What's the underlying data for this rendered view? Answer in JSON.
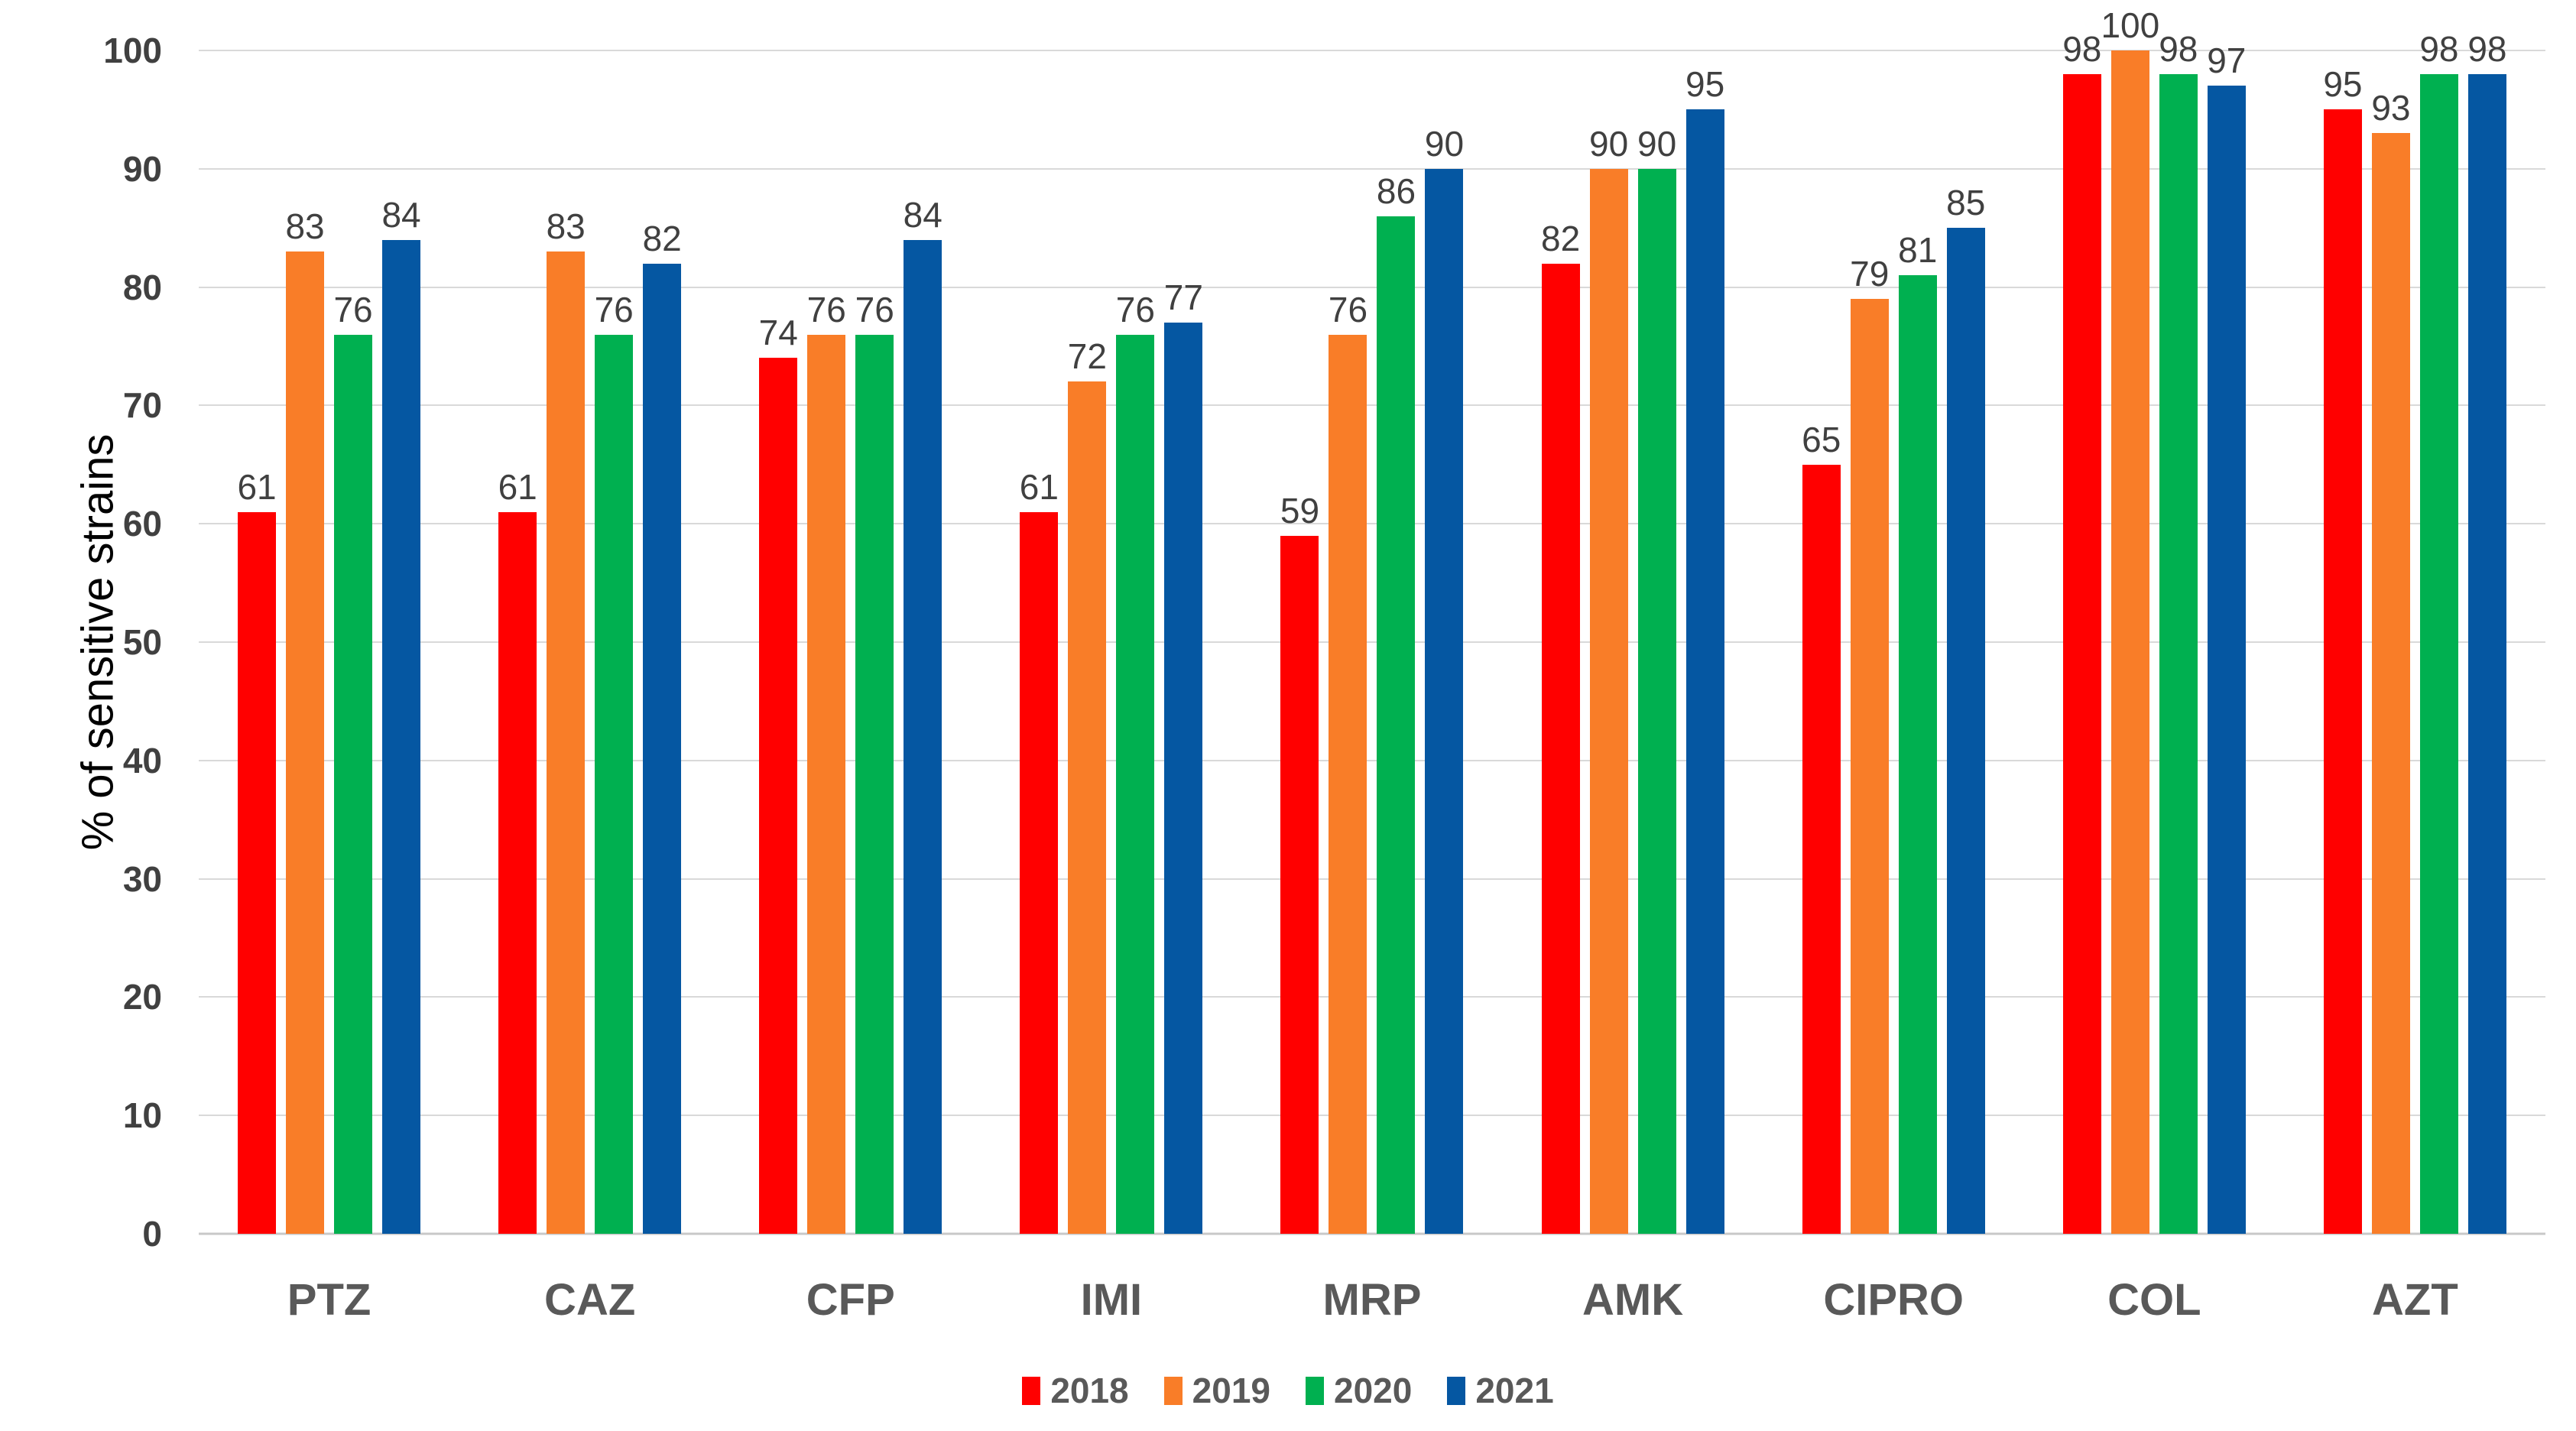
{
  "chart_data": {
    "type": "bar",
    "title": "",
    "xlabel": "",
    "ylabel": "% of sensitive strains",
    "ylim": [
      0,
      100
    ],
    "ytick_step": 10,
    "yticks": [
      "0",
      "10",
      "20",
      "30",
      "40",
      "50",
      "60",
      "70",
      "80",
      "90",
      "100"
    ],
    "grid": true,
    "legend_position": "bottom",
    "categories": [
      "PTZ",
      "CAZ",
      "CFP",
      "IMI",
      "MRP",
      "AMK",
      "CIPRO",
      "COL",
      "AZT"
    ],
    "series": [
      {
        "name": "2018",
        "color": "#FF0000",
        "values": [
          61,
          61,
          74,
          61,
          59,
          82,
          65,
          98,
          95
        ]
      },
      {
        "name": "2019",
        "color": "#F97D28",
        "values": [
          83,
          83,
          76,
          72,
          76,
          90,
          79,
          100,
          93
        ]
      },
      {
        "name": "2020",
        "color": "#00B050",
        "values": [
          76,
          76,
          76,
          76,
          86,
          90,
          81,
          98,
          98
        ]
      },
      {
        "name": "2021",
        "color": "#0557A2",
        "values": [
          84,
          82,
          84,
          77,
          90,
          95,
          85,
          97,
          98
        ]
      }
    ],
    "data_labels_shown": true
  },
  "colors": {
    "background": "#FFFFFF",
    "gridline": "#D9D9D9",
    "axis_line": "#C8C8C8",
    "tick_label": "#404040",
    "data_label": "#404040",
    "category_label": "#595959",
    "legend_label": "#595959"
  }
}
